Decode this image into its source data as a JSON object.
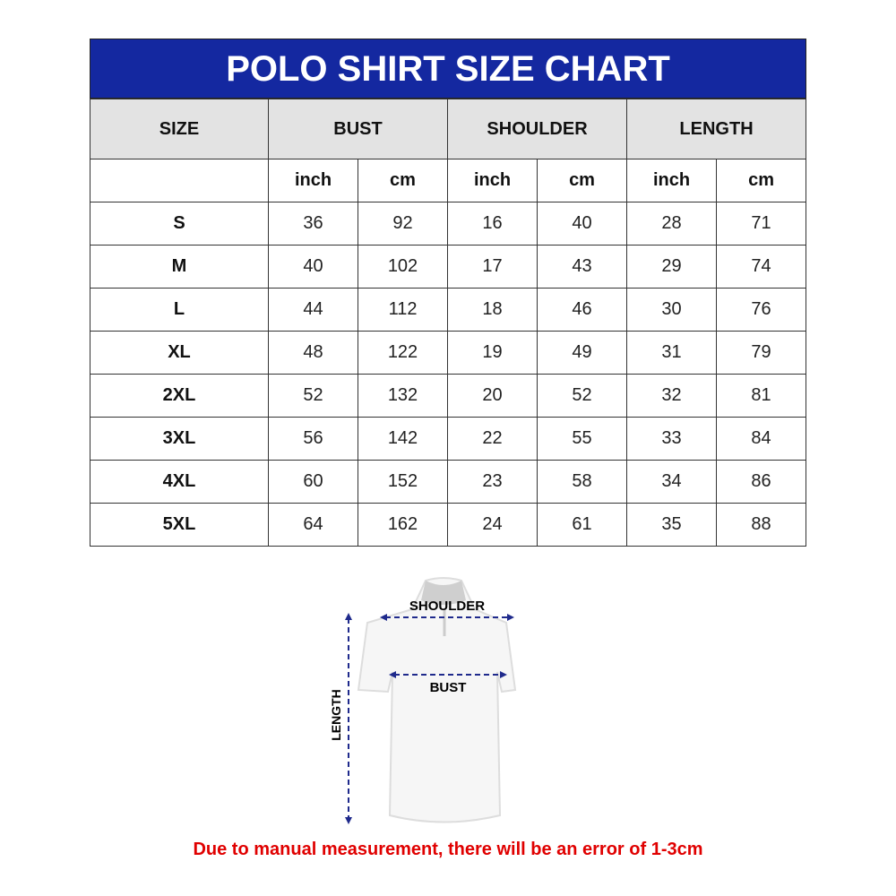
{
  "title": "POLO SHIRT SIZE CHART",
  "headers": [
    "SIZE",
    "BUST",
    "SHOULDER",
    "LENGTH"
  ],
  "units": [
    "inch",
    "cm",
    "inch",
    "cm",
    "inch",
    "cm"
  ],
  "rows": [
    [
      "S",
      "36",
      "92",
      "16",
      "40",
      "28",
      "71"
    ],
    [
      "M",
      "40",
      "102",
      "17",
      "43",
      "29",
      "74"
    ],
    [
      "L",
      "44",
      "112",
      "18",
      "46",
      "30",
      "76"
    ],
    [
      "XL",
      "48",
      "122",
      "19",
      "49",
      "31",
      "79"
    ],
    [
      "2XL",
      "52",
      "132",
      "20",
      "52",
      "32",
      "81"
    ],
    [
      "3XL",
      "56",
      "142",
      "22",
      "55",
      "33",
      "84"
    ],
    [
      "4XL",
      "60",
      "152",
      "23",
      "58",
      "34",
      "86"
    ],
    [
      "5XL",
      "64",
      "162",
      "24",
      "61",
      "35",
      "88"
    ]
  ],
  "diagram": {
    "shoulder": "SHOULDER",
    "bust": "BUST",
    "length": "LENGTH"
  },
  "note": "Due to manual measurement, there will be an error of 1-3cm",
  "colors": {
    "title_bg": "#1428a0",
    "header_bg": "#e3e3e3",
    "note": "#e00000",
    "arrow": "#1f2a8c"
  }
}
